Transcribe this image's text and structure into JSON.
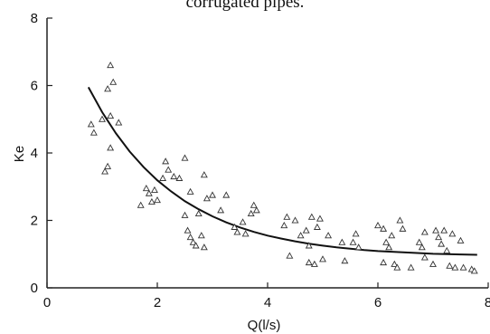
{
  "caption": "corrugated pipes.",
  "chart_data": {
    "type": "scatter",
    "xlabel": "Q(l/s)",
    "ylabel": "Ke",
    "xlim": [
      0,
      8
    ],
    "ylim": [
      0,
      8
    ],
    "x_ticks": [
      0,
      2,
      4,
      6,
      8
    ],
    "y_ticks": [
      0,
      2,
      4,
      6,
      8
    ],
    "grid": false,
    "series": [
      {
        "marker": "triangle",
        "points": [
          [
            0.8,
            4.85
          ],
          [
            0.85,
            4.6
          ],
          [
            1.0,
            5.0
          ],
          [
            1.05,
            3.45
          ],
          [
            1.1,
            3.6
          ],
          [
            1.1,
            5.9
          ],
          [
            1.15,
            6.6
          ],
          [
            1.15,
            5.1
          ],
          [
            1.15,
            4.15
          ],
          [
            1.2,
            6.1
          ],
          [
            1.3,
            4.9
          ],
          [
            1.7,
            2.45
          ],
          [
            1.8,
            2.95
          ],
          [
            1.85,
            2.8
          ],
          [
            1.9,
            2.55
          ],
          [
            1.95,
            2.9
          ],
          [
            2.0,
            2.6
          ],
          [
            2.1,
            3.25
          ],
          [
            2.15,
            3.75
          ],
          [
            2.2,
            3.5
          ],
          [
            2.3,
            3.3
          ],
          [
            2.4,
            3.25
          ],
          [
            2.5,
            3.85
          ],
          [
            2.5,
            2.15
          ],
          [
            2.55,
            1.7
          ],
          [
            2.6,
            2.85
          ],
          [
            2.6,
            1.5
          ],
          [
            2.65,
            1.35
          ],
          [
            2.7,
            1.25
          ],
          [
            2.75,
            2.2
          ],
          [
            2.8,
            1.55
          ],
          [
            2.85,
            1.2
          ],
          [
            2.85,
            3.35
          ],
          [
            2.9,
            2.65
          ],
          [
            3.0,
            2.75
          ],
          [
            3.15,
            2.3
          ],
          [
            3.25,
            2.75
          ],
          [
            3.4,
            1.8
          ],
          [
            3.45,
            1.65
          ],
          [
            3.55,
            1.95
          ],
          [
            3.6,
            1.6
          ],
          [
            3.7,
            2.2
          ],
          [
            3.75,
            2.45
          ],
          [
            3.8,
            2.3
          ],
          [
            4.3,
            1.85
          ],
          [
            4.35,
            2.1
          ],
          [
            4.4,
            0.95
          ],
          [
            4.5,
            2.0
          ],
          [
            4.6,
            1.55
          ],
          [
            4.7,
            1.7
          ],
          [
            4.75,
            1.25
          ],
          [
            4.75,
            0.75
          ],
          [
            4.8,
            2.1
          ],
          [
            4.85,
            0.7
          ],
          [
            4.9,
            1.8
          ],
          [
            4.95,
            2.05
          ],
          [
            5.0,
            0.85
          ],
          [
            5.1,
            1.55
          ],
          [
            5.35,
            1.35
          ],
          [
            5.4,
            0.8
          ],
          [
            5.55,
            1.35
          ],
          [
            5.6,
            1.6
          ],
          [
            5.65,
            1.2
          ],
          [
            6.0,
            1.85
          ],
          [
            6.1,
            0.75
          ],
          [
            6.1,
            1.75
          ],
          [
            6.15,
            1.35
          ],
          [
            6.2,
            1.2
          ],
          [
            6.25,
            1.55
          ],
          [
            6.3,
            0.7
          ],
          [
            6.35,
            0.6
          ],
          [
            6.4,
            2.0
          ],
          [
            6.45,
            1.75
          ],
          [
            6.6,
            0.6
          ],
          [
            6.75,
            1.35
          ],
          [
            6.8,
            1.2
          ],
          [
            6.85,
            1.65
          ],
          [
            6.85,
            0.9
          ],
          [
            7.0,
            0.7
          ],
          [
            7.05,
            1.7
          ],
          [
            7.1,
            1.5
          ],
          [
            7.15,
            1.3
          ],
          [
            7.2,
            1.7
          ],
          [
            7.25,
            1.1
          ],
          [
            7.3,
            0.65
          ],
          [
            7.35,
            1.6
          ],
          [
            7.4,
            0.6
          ],
          [
            7.5,
            1.4
          ],
          [
            7.55,
            0.6
          ],
          [
            7.7,
            0.55
          ],
          [
            7.75,
            0.5
          ]
        ]
      },
      {
        "type": "line",
        "x": [
          0.75,
          1.0,
          1.25,
          1.5,
          1.75,
          2.0,
          2.25,
          2.5,
          2.75,
          3.0,
          3.25,
          3.5,
          3.75,
          4.0,
          4.25,
          4.5,
          4.75,
          5.0,
          5.25,
          5.5,
          5.75,
          6.0,
          6.25,
          6.5,
          6.75,
          7.0,
          7.25,
          7.5,
          7.8
        ],
        "y": [
          5.95,
          5.21,
          4.58,
          4.04,
          3.58,
          3.19,
          2.86,
          2.57,
          2.33,
          2.12,
          1.94,
          1.79,
          1.66,
          1.55,
          1.46,
          1.38,
          1.31,
          1.25,
          1.2,
          1.16,
          1.12,
          1.09,
          1.07,
          1.05,
          1.03,
          1.01,
          1.0,
          0.99,
          0.98
        ]
      }
    ]
  }
}
